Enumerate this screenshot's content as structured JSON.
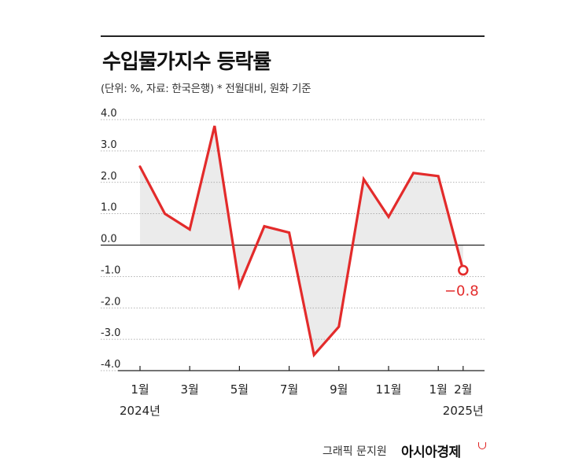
{
  "header": {
    "title": "수입물가지수 등락률",
    "subtitle": "(단위: %, 자료: 한국은행)  * 전월대비, 원화 기준"
  },
  "footer": {
    "credit": "그래픽 문지원",
    "logo": "아시아경제"
  },
  "colors": {
    "line": "#e32b2b",
    "fill": "#ebebeb",
    "grid": "#9a9a9a",
    "axis": "#222222"
  },
  "chart_data": {
    "type": "area",
    "x": [
      "2024-01",
      "2024-02",
      "2024-03",
      "2024-04",
      "2024-05",
      "2024-06",
      "2024-07",
      "2024-08",
      "2024-09",
      "2024-10",
      "2024-11",
      "2024-12",
      "2025-01",
      "2025-02"
    ],
    "y": [
      2.5,
      1.0,
      0.5,
      3.8,
      -1.3,
      0.6,
      0.4,
      -3.5,
      -2.6,
      2.1,
      0.9,
      2.3,
      2.2,
      -0.8
    ],
    "ylim": [
      -4.0,
      4.0
    ],
    "yticks": [
      "4.0",
      "3.0",
      "2.0",
      "1.0",
      "0.0",
      "-1.0",
      "-2.0",
      "-3.0",
      "-4.0"
    ],
    "xtick_labels": [
      {
        "index": 0,
        "label": "1월",
        "sub": "2024년"
      },
      {
        "index": 2,
        "label": "3월",
        "sub": ""
      },
      {
        "index": 4,
        "label": "5월",
        "sub": ""
      },
      {
        "index": 6,
        "label": "7월",
        "sub": ""
      },
      {
        "index": 8,
        "label": "9월",
        "sub": ""
      },
      {
        "index": 10,
        "label": "11월",
        "sub": ""
      },
      {
        "index": 12,
        "label": "1월",
        "sub": ""
      },
      {
        "index": 13,
        "label": "2월",
        "sub": "2025년"
      }
    ],
    "annotation": {
      "index": 13,
      "text": "−0.8"
    },
    "grid": true
  }
}
